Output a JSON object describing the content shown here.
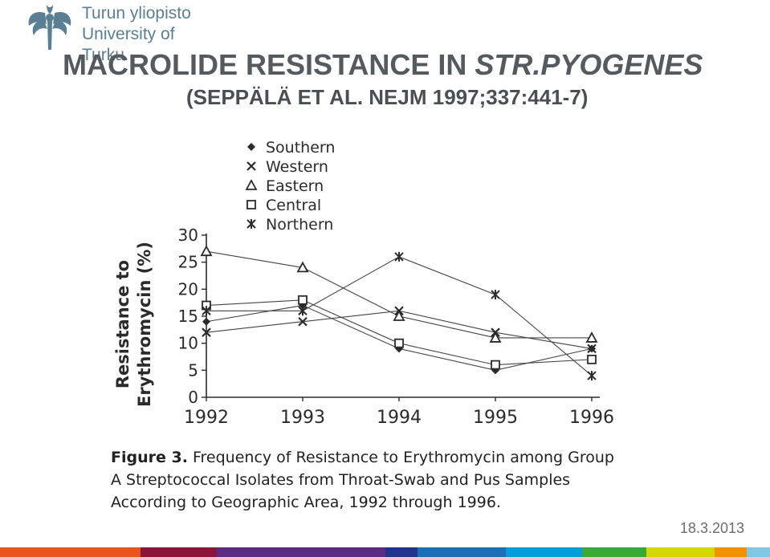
{
  "logo": {
    "line1": "Turun yliopisto",
    "line2": "University of Turku",
    "color": "#5a7f95"
  },
  "title": {
    "main": "MACROLIDE RESISTANCE IN",
    "italic": "STR.PYOGENES",
    "sub": "(SEPPÄLÄ ET AL. NEJM 1997;337:441-7)"
  },
  "chart_data": {
    "type": "line",
    "x": [
      1992,
      1993,
      1994,
      1995,
      1996
    ],
    "ylabel_line1": "Resistance to",
    "ylabel_line2": "Erythromycin (%)",
    "ylim": [
      0,
      30
    ],
    "yticks": [
      0,
      5,
      10,
      15,
      20,
      25,
      30
    ],
    "legend_position": "top-left",
    "series": [
      {
        "name": "Southern",
        "marker": "diamond",
        "values": [
          14,
          17,
          9,
          5,
          9
        ]
      },
      {
        "name": "Western",
        "marker": "x",
        "values": [
          12,
          14,
          16,
          12,
          9
        ]
      },
      {
        "name": "Eastern",
        "marker": "triangle",
        "values": [
          27,
          24,
          15,
          11,
          11
        ]
      },
      {
        "name": "Central",
        "marker": "square",
        "values": [
          17,
          18,
          10,
          6,
          7
        ]
      },
      {
        "name": "Northern",
        "marker": "star",
        "values": [
          16,
          16,
          26,
          19,
          4
        ]
      }
    ]
  },
  "caption": {
    "label": "Figure 3.",
    "text": "Frequency of Resistance to Erythromycin among Group A Streptococcal Isolates from Throat-Swab and Pus Samples According to Geographic Area, 1992 through 1996."
  },
  "date": "18.3.2013",
  "bottom_bar_colors": [
    "#e8531e",
    "#8b1538",
    "#5c2a82",
    "#21338b",
    "#1d6fb5",
    "#009fd9",
    "#3aa935",
    "#d5d800",
    "#f39200",
    "#7ec8e3"
  ]
}
